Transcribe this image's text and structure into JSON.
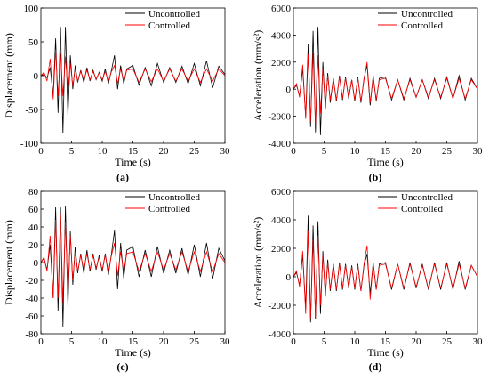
{
  "colors": {
    "uncontrolled": "#000000",
    "controlled": "#ff0000",
    "axis": "#000000"
  },
  "chart_data": [
    {
      "type": "line",
      "panel_label": "(a)",
      "xlabel": "Time (s)",
      "ylabel": "Displacement  (mm)",
      "xlim": [
        0,
        30
      ],
      "ylim": [
        -100,
        100
      ],
      "xticks": [
        "0",
        "5",
        "10",
        "15",
        "20",
        "25",
        "30"
      ],
      "yticks": [
        "-100",
        "-50",
        "0",
        "50",
        "100"
      ],
      "legend": {
        "placement": "top-right",
        "entries": [
          "Uncontrolled",
          "Controlled"
        ]
      },
      "series": [
        {
          "name": "Uncontrolled",
          "x": [
            0,
            0.5,
            1,
            1.5,
            2,
            2.4,
            2.8,
            3.2,
            3.6,
            4.0,
            4.4,
            4.8,
            5.2,
            5.6,
            6,
            6.5,
            7,
            7.5,
            8,
            8.5,
            9,
            9.5,
            10,
            10.5,
            11,
            11.5,
            12,
            12.5,
            13,
            13.5,
            14,
            15,
            16,
            17,
            18,
            19,
            20,
            21,
            22,
            23,
            24,
            25,
            26,
            27,
            28,
            29,
            30
          ],
          "y": [
            0,
            2,
            -3,
            12,
            -30,
            55,
            -55,
            72,
            -85,
            72,
            -60,
            30,
            -20,
            15,
            -10,
            8,
            -10,
            12,
            -8,
            8,
            -6,
            5,
            -8,
            10,
            -12,
            8,
            30,
            -20,
            15,
            -12,
            10,
            15,
            -14,
            12,
            -15,
            18,
            -10,
            12,
            -10,
            14,
            -12,
            18,
            -15,
            22,
            -18,
            14,
            2
          ]
        },
        {
          "name": "Controlled",
          "x": [
            0,
            0.5,
            1,
            1.5,
            2,
            2.4,
            2.8,
            3.2,
            3.6,
            4.0,
            4.4,
            4.8,
            5.2,
            5.6,
            6,
            6.5,
            7,
            7.5,
            8,
            8.5,
            9,
            9.5,
            10,
            10.5,
            11,
            11.5,
            12,
            12.5,
            13,
            13.5,
            14,
            15,
            16,
            17,
            18,
            19,
            20,
            21,
            22,
            23,
            24,
            25,
            26,
            27,
            28,
            29,
            30
          ],
          "y": [
            0,
            5,
            -8,
            25,
            -35,
            38,
            -30,
            32,
            -30,
            28,
            -22,
            18,
            -15,
            10,
            -8,
            6,
            -6,
            8,
            -6,
            6,
            -5,
            4,
            -6,
            6,
            -8,
            6,
            15,
            -12,
            10,
            -8,
            8,
            10,
            -10,
            10,
            -9,
            10,
            -8,
            10,
            -8,
            10,
            -8,
            10,
            -10,
            10,
            -8,
            10,
            0
          ]
        }
      ]
    },
    {
      "type": "line",
      "panel_label": "(b)",
      "xlabel": "Time (s)",
      "ylabel": "Acceleration  (mm/s²)",
      "xlim": [
        0,
        30
      ],
      "ylim": [
        -4000,
        6000
      ],
      "xticks": [
        "0",
        "5",
        "10",
        "15",
        "20",
        "25",
        "30"
      ],
      "yticks": [
        "-4000",
        "-2000",
        "0",
        "2000",
        "4000",
        "6000"
      ],
      "legend": {
        "placement": "top-right",
        "entries": [
          "Uncontrolled",
          "Controlled"
        ]
      },
      "series": [
        {
          "name": "Uncontrolled",
          "x": [
            0,
            0.5,
            1,
            1.5,
            2,
            2.4,
            2.8,
            3.2,
            3.6,
            4.0,
            4.4,
            4.8,
            5.2,
            5.6,
            6,
            6.5,
            7,
            7.5,
            8,
            8.5,
            9,
            9.5,
            10,
            10.5,
            11,
            11.5,
            12,
            12.5,
            13,
            13.5,
            14,
            15,
            16,
            17,
            18,
            19,
            20,
            21,
            22,
            23,
            24,
            25,
            26,
            27,
            28,
            29,
            30
          ],
          "y": [
            0,
            300,
            -500,
            1500,
            -2000,
            3300,
            -2800,
            4300,
            -3200,
            4600,
            -3400,
            2000,
            -1500,
            1200,
            -1000,
            800,
            -900,
            1000,
            -800,
            900,
            -700,
            700,
            -900,
            900,
            -1000,
            800,
            1800,
            -1200,
            1000,
            -900,
            800,
            900,
            -800,
            700,
            -800,
            800,
            -600,
            700,
            -700,
            800,
            -700,
            900,
            -700,
            1000,
            -800,
            800,
            0
          ]
        },
        {
          "name": "Controlled",
          "x": [
            0,
            0.5,
            1,
            1.5,
            2,
            2.4,
            2.8,
            3.2,
            3.6,
            4.0,
            4.4,
            4.8,
            5.2,
            5.6,
            6,
            6.5,
            7,
            7.5,
            8,
            8.5,
            9,
            9.5,
            10,
            10.5,
            11,
            11.5,
            12,
            12.5,
            13,
            13.5,
            14,
            15,
            16,
            17,
            18,
            19,
            20,
            21,
            22,
            23,
            24,
            25,
            26,
            27,
            28,
            29,
            30
          ],
          "y": [
            0,
            400,
            -600,
            1800,
            -2200,
            2600,
            -2400,
            2700,
            -2600,
            2500,
            -1800,
            1500,
            -1200,
            1000,
            -800,
            700,
            -800,
            900,
            -700,
            800,
            -600,
            700,
            -800,
            800,
            -900,
            700,
            2000,
            -1000,
            900,
            -800,
            700,
            800,
            -700,
            700,
            -700,
            700,
            -600,
            700,
            -600,
            700,
            -600,
            800,
            -700,
            800,
            -700,
            700,
            0
          ]
        }
      ]
    },
    {
      "type": "line",
      "panel_label": "(c)",
      "xlabel": "Time (s)",
      "ylabel": "Displacement (mm)",
      "xlim": [
        0,
        30
      ],
      "ylim": [
        -80,
        80
      ],
      "xticks": [
        "0",
        "5",
        "10",
        "15",
        "20",
        "25",
        "30"
      ],
      "yticks": [
        "-80",
        "-60",
        "-40",
        "-20",
        "0",
        "20",
        "40",
        "60",
        "80"
      ],
      "legend": {
        "placement": "top-right",
        "entries": [
          "Uncontrolled",
          "Controlled"
        ]
      },
      "series": [
        {
          "name": "Uncontrolled",
          "x": [
            0,
            0.5,
            1,
            1.5,
            2,
            2.4,
            2.8,
            3.2,
            3.6,
            4.0,
            4.4,
            4.8,
            5.2,
            5.6,
            6,
            6.5,
            7,
            7.5,
            8,
            8.5,
            9,
            9.5,
            10,
            10.5,
            11,
            11.5,
            12,
            12.5,
            13,
            13.5,
            14,
            15,
            16,
            17,
            18,
            19,
            20,
            21,
            22,
            23,
            24,
            25,
            26,
            27,
            28,
            29,
            30
          ],
          "y": [
            0,
            5,
            -8,
            20,
            -40,
            62,
            -55,
            62,
            -72,
            63,
            -50,
            35,
            -25,
            18,
            -12,
            10,
            -12,
            14,
            -10,
            10,
            -8,
            8,
            -10,
            10,
            -14,
            10,
            36,
            -30,
            22,
            -18,
            14,
            18,
            -16,
            14,
            -16,
            18,
            -12,
            14,
            -12,
            16,
            -14,
            20,
            -16,
            22,
            -18,
            16,
            2
          ]
        },
        {
          "name": "Controlled",
          "x": [
            0,
            0.5,
            1,
            1.5,
            2,
            2.4,
            2.8,
            3.2,
            3.6,
            4.0,
            4.4,
            4.8,
            5.2,
            5.6,
            6,
            6.5,
            7,
            7.5,
            8,
            8.5,
            9,
            9.5,
            10,
            10.5,
            11,
            11.5,
            12,
            12.5,
            13,
            13.5,
            14,
            15,
            16,
            17,
            18,
            19,
            20,
            21,
            22,
            23,
            24,
            25,
            26,
            27,
            28,
            29,
            30
          ],
          "y": [
            0,
            6,
            -10,
            30,
            -40,
            48,
            -40,
            55,
            -45,
            45,
            -35,
            30,
            -20,
            12,
            -10,
            8,
            -8,
            10,
            -8,
            8,
            -6,
            6,
            -8,
            8,
            -10,
            8,
            22,
            -15,
            12,
            -10,
            10,
            12,
            -10,
            10,
            -10,
            12,
            -8,
            10,
            -8,
            12,
            -10,
            12,
            -10,
            12,
            -10,
            10,
            0
          ]
        }
      ]
    },
    {
      "type": "line",
      "panel_label": "(d)",
      "xlabel": "Time  (s)",
      "ylabel": "Acceleration  (mm/s²)",
      "xlim": [
        0,
        30
      ],
      "ylim": [
        -4000,
        6000
      ],
      "xticks": [
        "0",
        "5",
        "10",
        "15",
        "20",
        "25",
        "30"
      ],
      "yticks": [
        "-4000",
        "-2000",
        "0",
        "2000",
        "4000",
        "6000"
      ],
      "legend": {
        "placement": "top-right",
        "entries": [
          "Uncontrolled",
          "Controlled"
        ]
      },
      "series": [
        {
          "name": "Uncontrolled",
          "x": [
            0,
            0.5,
            1,
            1.5,
            2,
            2.4,
            2.8,
            3.2,
            3.6,
            4.0,
            4.4,
            4.8,
            5.2,
            5.6,
            6,
            6.5,
            7,
            7.5,
            8,
            8.5,
            9,
            9.5,
            10,
            10.5,
            11,
            11.5,
            12,
            12.5,
            13,
            13.5,
            14,
            15,
            16,
            17,
            18,
            19,
            20,
            21,
            22,
            23,
            24,
            25,
            26,
            27,
            28,
            29,
            30
          ],
          "y": [
            0,
            300,
            -600,
            1500,
            -2200,
            4300,
            -3200,
            3600,
            -3000,
            3900,
            -2600,
            1800,
            -1400,
            1200,
            -1000,
            900,
            -1000,
            1000,
            -900,
            900,
            -800,
            800,
            -900,
            900,
            -1000,
            800,
            1600,
            -1200,
            1000,
            -900,
            900,
            1000,
            -900,
            900,
            -900,
            1000,
            -800,
            900,
            -900,
            1000,
            -900,
            1000,
            -900,
            1100,
            -900,
            800,
            0
          ]
        },
        {
          "name": "Controlled",
          "x": [
            0,
            0.5,
            1,
            1.5,
            2,
            2.4,
            2.8,
            3.2,
            3.6,
            4.0,
            4.4,
            4.8,
            5.2,
            5.6,
            6,
            6.5,
            7,
            7.5,
            8,
            8.5,
            9,
            9.5,
            10,
            10.5,
            11,
            11.5,
            12,
            12.5,
            13,
            13.5,
            14,
            15,
            16,
            17,
            18,
            19,
            20,
            21,
            22,
            23,
            24,
            25,
            26,
            27,
            28,
            29,
            30
          ],
          "y": [
            0,
            400,
            -700,
            1800,
            -2600,
            3200,
            -3000,
            2600,
            -2800,
            2900,
            -2000,
            1500,
            -1200,
            1000,
            -900,
            800,
            -900,
            900,
            -800,
            800,
            -700,
            700,
            -800,
            800,
            -1000,
            900,
            2200,
            -1600,
            1000,
            -900,
            800,
            900,
            -800,
            900,
            -800,
            900,
            -700,
            800,
            -800,
            900,
            -800,
            900,
            -800,
            900,
            -800,
            800,
            0
          ]
        }
      ]
    }
  ]
}
